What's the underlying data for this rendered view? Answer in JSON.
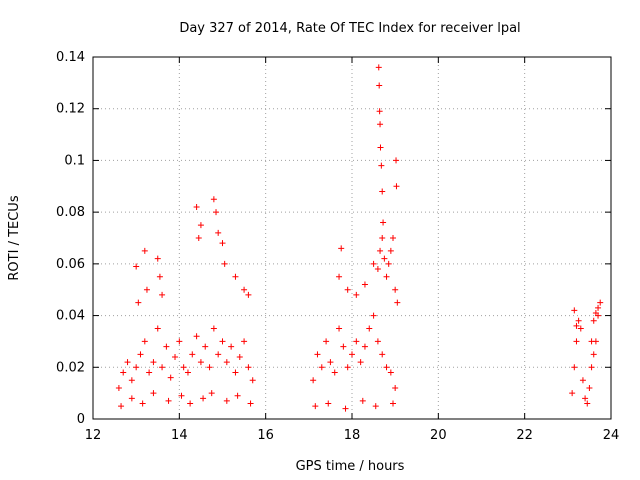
{
  "chart_data": {
    "type": "scatter",
    "title": "Day 327 of 2014, Rate Of TEC Index for receiver lpal",
    "xlabel": "GPS time / hours",
    "ylabel": "ROTI / TECUs",
    "xlim": [
      12,
      24
    ],
    "ylim": [
      0,
      0.14
    ],
    "xticks": [
      12,
      14,
      16,
      18,
      20,
      22,
      24
    ],
    "xtick_labels": [
      "12",
      "14",
      "16",
      "18",
      "20",
      "22",
      "24"
    ],
    "yticks": [
      0,
      0.02,
      0.04,
      0.06,
      0.08,
      0.1,
      0.12,
      0.14
    ],
    "ytick_labels": [
      "0",
      "0.02",
      "0.04",
      "0.06",
      "0.08",
      "0.1",
      "0.12",
      "0.14"
    ],
    "grid": true,
    "marker": "+",
    "marker_color": "#ff0000",
    "series": [
      {
        "name": "ROTI",
        "x": [
          12.6,
          12.7,
          12.8,
          12.9,
          13.0,
          13.1,
          13.2,
          13.3,
          13.4,
          13.5,
          13.6,
          13.7,
          13.8,
          13.9,
          14.0,
          14.1,
          14.2,
          14.3,
          14.4,
          14.5,
          14.6,
          14.7,
          14.8,
          14.9,
          15.0,
          15.1,
          15.2,
          15.3,
          15.4,
          15.5,
          15.6,
          15.7,
          13.0,
          13.05,
          13.2,
          13.25,
          13.5,
          13.55,
          13.6,
          14.4,
          14.45,
          14.5,
          14.8,
          14.85,
          14.9,
          15.0,
          15.05,
          15.3,
          15.5,
          15.6,
          12.65,
          12.9,
          13.15,
          13.4,
          13.75,
          14.05,
          14.25,
          14.55,
          14.75,
          15.1,
          15.35,
          15.65,
          17.1,
          17.2,
          17.3,
          17.4,
          17.5,
          17.6,
          17.7,
          17.8,
          17.9,
          18.0,
          18.1,
          18.2,
          18.3,
          18.4,
          18.5,
          18.6,
          18.7,
          18.8,
          18.9,
          19.0,
          17.7,
          17.75,
          17.9,
          18.1,
          18.3,
          18.5,
          18.6,
          18.65,
          18.7,
          18.75,
          18.8,
          18.85,
          18.9,
          18.95,
          19.0,
          19.05,
          18.62,
          18.63,
          18.64,
          18.65,
          18.66,
          18.68,
          18.7,
          18.72,
          19.02,
          19.03,
          17.15,
          17.45,
          17.85,
          18.25,
          18.55,
          18.95,
          23.1,
          23.15,
          23.2,
          23.25,
          23.3,
          23.35,
          23.4,
          23.45,
          23.5,
          23.55,
          23.6,
          23.65,
          23.7,
          23.75,
          23.15,
          23.2,
          23.55,
          23.6,
          23.65,
          23.7
        ],
        "y": [
          0.012,
          0.018,
          0.022,
          0.015,
          0.02,
          0.025,
          0.03,
          0.018,
          0.022,
          0.035,
          0.02,
          0.028,
          0.016,
          0.024,
          0.03,
          0.02,
          0.018,
          0.025,
          0.032,
          0.022,
          0.028,
          0.02,
          0.035,
          0.025,
          0.03,
          0.022,
          0.028,
          0.018,
          0.024,
          0.03,
          0.02,
          0.015,
          0.059,
          0.045,
          0.065,
          0.05,
          0.062,
          0.055,
          0.048,
          0.082,
          0.07,
          0.075,
          0.085,
          0.08,
          0.072,
          0.068,
          0.06,
          0.055,
          0.05,
          0.048,
          0.005,
          0.008,
          0.006,
          0.01,
          0.007,
          0.009,
          0.006,
          0.008,
          0.01,
          0.007,
          0.009,
          0.006,
          0.015,
          0.025,
          0.02,
          0.03,
          0.022,
          0.018,
          0.035,
          0.028,
          0.02,
          0.025,
          0.03,
          0.022,
          0.028,
          0.035,
          0.04,
          0.03,
          0.025,
          0.02,
          0.018,
          0.012,
          0.055,
          0.066,
          0.05,
          0.048,
          0.052,
          0.06,
          0.058,
          0.065,
          0.07,
          0.062,
          0.055,
          0.06,
          0.065,
          0.07,
          0.05,
          0.045,
          0.136,
          0.129,
          0.119,
          0.114,
          0.105,
          0.098,
          0.088,
          0.076,
          0.1,
          0.09,
          0.005,
          0.006,
          0.004,
          0.007,
          0.005,
          0.006,
          0.01,
          0.02,
          0.03,
          0.038,
          0.035,
          0.015,
          0.008,
          0.006,
          0.012,
          0.02,
          0.025,
          0.03,
          0.04,
          0.045,
          0.042,
          0.036,
          0.03,
          0.038,
          0.041,
          0.043
        ]
      }
    ]
  }
}
